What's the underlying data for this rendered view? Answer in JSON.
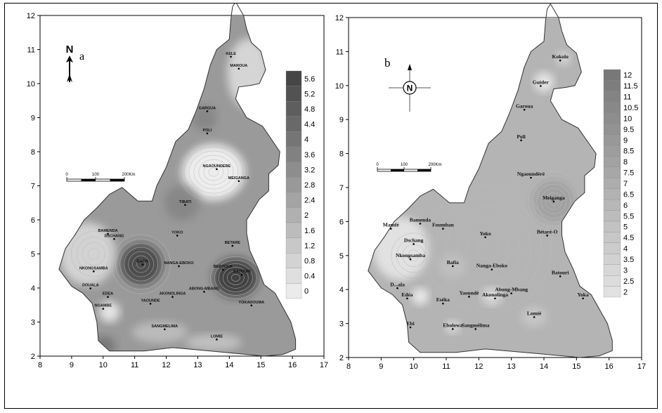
{
  "map_a": {
    "panel_letter": "a",
    "north_letter": "N",
    "x_ticks": [
      "8",
      "9",
      "10",
      "11",
      "12",
      "13",
      "14",
      "15",
      "16",
      "17"
    ],
    "y_ticks": [
      "2",
      "3",
      "4",
      "5",
      "6",
      "7",
      "8",
      "9",
      "10",
      "11",
      "12"
    ],
    "scale_labels": [
      "0",
      "100",
      "200Km"
    ],
    "legend": [
      "5.6",
      "5.2",
      "4.8",
      "4.4",
      "4",
      "3.6",
      "3.2",
      "2.8",
      "2.4",
      "2",
      "1.6",
      "1.2",
      "0.8",
      "0.4",
      "0"
    ],
    "cities": [
      {
        "name": "KELE",
        "lon": 14.05,
        "lat": 10.85
      },
      {
        "name": "MAROUA",
        "lon": 14.3,
        "lat": 10.5
      },
      {
        "name": "GARGUA",
        "lon": 13.3,
        "lat": 9.25
      },
      {
        "name": "POLI",
        "lon": 13.3,
        "lat": 8.6
      },
      {
        "name": "NGAOUNDERE",
        "lon": 13.6,
        "lat": 7.55
      },
      {
        "name": "MEIGANGA",
        "lon": 14.3,
        "lat": 7.2
      },
      {
        "name": "TIBATI",
        "lon": 12.6,
        "lat": 6.5
      },
      {
        "name": "BAMENDA",
        "lon": 10.15,
        "lat": 5.65
      },
      {
        "name": "DSCHANG",
        "lon": 10.35,
        "lat": 5.5
      },
      {
        "name": "YOKO",
        "lon": 12.35,
        "lat": 5.6
      },
      {
        "name": "BETARE",
        "lon": 14.1,
        "lat": 5.3
      },
      {
        "name": "BAFIA",
        "lon": 11.25,
        "lat": 4.75
      },
      {
        "name": "NANGA-EBOKO",
        "lon": 12.4,
        "lat": 4.7
      },
      {
        "name": "BERTOUA",
        "lon": 13.8,
        "lat": 4.6
      },
      {
        "name": "NKONGSAMBA",
        "lon": 9.7,
        "lat": 4.55
      },
      {
        "name": "BATOURI",
        "lon": 14.4,
        "lat": 4.45
      },
      {
        "name": "DOUALA",
        "lon": 9.6,
        "lat": 4.05
      },
      {
        "name": "ABONG-MBANG",
        "lon": 13.2,
        "lat": 3.95
      },
      {
        "name": "AKONOLINGA",
        "lon": 12.2,
        "lat": 3.8
      },
      {
        "name": "EDEA",
        "lon": 10.15,
        "lat": 3.8
      },
      {
        "name": "YAOUNDE",
        "lon": 11.5,
        "lat": 3.6
      },
      {
        "name": "NGAMBE",
        "lon": 10.0,
        "lat": 3.45
      },
      {
        "name": "YOKADOUMA",
        "lon": 14.7,
        "lat": 3.55
      },
      {
        "name": "SANGMELIMA",
        "lon": 11.95,
        "lat": 2.85
      },
      {
        "name": "LOMIE",
        "lon": 13.6,
        "lat": 2.55
      }
    ]
  },
  "map_b": {
    "panel_letter": "b",
    "north_letter": "N",
    "x_ticks": [
      "8",
      "9",
      "10",
      "11",
      "12",
      "13",
      "14",
      "15",
      "16",
      "17"
    ],
    "y_ticks": [
      "2",
      "3",
      "4",
      "5",
      "6",
      "7",
      "8",
      "9",
      "10",
      "11",
      "12"
    ],
    "scale_labels": [
      "0",
      "100",
      "200Km"
    ],
    "legend": [
      "12",
      "11.5",
      "11",
      "10.5",
      "10",
      "9.5",
      "9",
      "8.5",
      "8",
      "7.5",
      "7",
      "6.5",
      "6",
      "5.5",
      "5",
      "4.5",
      "4",
      "3.5",
      "3",
      "2.5",
      "2"
    ],
    "cities": [
      {
        "name": "Kokolo",
        "lon": 14.5,
        "lat": 10.8
      },
      {
        "name": "Guider",
        "lon": 13.9,
        "lat": 10.05
      },
      {
        "name": "Garoua",
        "lon": 13.4,
        "lat": 9.35
      },
      {
        "name": "Poli",
        "lon": 13.3,
        "lat": 8.45
      },
      {
        "name": "Ngaoundéré",
        "lon": 13.6,
        "lat": 7.35
      },
      {
        "name": "Meiganga",
        "lon": 14.3,
        "lat": 6.65
      },
      {
        "name": "Bamenda",
        "lon": 10.2,
        "lat": 6.0
      },
      {
        "name": "Mamfé",
        "lon": 9.3,
        "lat": 5.85
      },
      {
        "name": "Foumban",
        "lon": 10.9,
        "lat": 5.85
      },
      {
        "name": "Yoko",
        "lon": 12.2,
        "lat": 5.6
      },
      {
        "name": "Bétaré-O",
        "lon": 14.1,
        "lat": 5.65
      },
      {
        "name": "Dschang",
        "lon": 10.0,
        "lat": 5.4
      },
      {
        "name": "Nkongsamba",
        "lon": 9.9,
        "lat": 4.95
      },
      {
        "name": "Bafia",
        "lon": 11.2,
        "lat": 4.75
      },
      {
        "name": "Nanga-Eboko",
        "lon": 12.4,
        "lat": 4.65
      },
      {
        "name": "Batouri",
        "lon": 14.5,
        "lat": 4.45
      },
      {
        "name": "D...ala",
        "lon": 9.5,
        "lat": 4.1
      },
      {
        "name": "Edéa",
        "lon": 9.8,
        "lat": 3.8
      },
      {
        "name": "Yaoundé",
        "lon": 11.7,
        "lat": 3.85
      },
      {
        "name": "Abong-Mbang",
        "lon": 13.0,
        "lat": 3.95
      },
      {
        "name": "Akonolinga",
        "lon": 12.5,
        "lat": 3.8
      },
      {
        "name": "Yoka",
        "lon": 15.2,
        "lat": 3.8
      },
      {
        "name": "Eséka",
        "lon": 10.9,
        "lat": 3.65
      },
      {
        "name": "Lomié",
        "lon": 13.7,
        "lat": 3.25
      },
      {
        "name": "Ebolowa",
        "lon": 11.2,
        "lat": 2.9
      },
      {
        "name": "Sangmélima",
        "lon": 11.9,
        "lat": 2.9
      },
      {
        "name": "Ebi",
        "lon": 9.9,
        "lat": 2.95
      }
    ]
  }
}
